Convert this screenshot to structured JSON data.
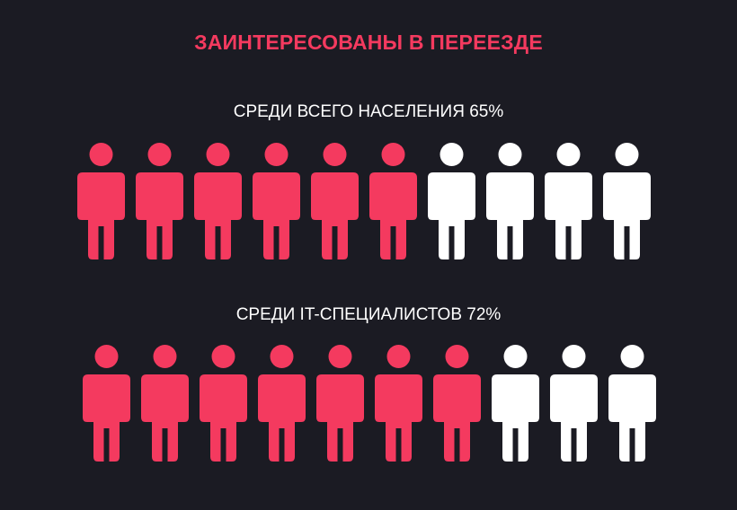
{
  "title": "ЗАИНТЕРЕСОВАНЫ В ПЕРЕЕЗДЕ",
  "colors": {
    "background": "#1b1b23",
    "accent": "#f43a5f",
    "neutral": "#ffffff"
  },
  "icon": "person-icon",
  "chart_data": [
    {
      "type": "pictogram",
      "label": "СРЕДИ ВСЕГО НАСЕЛЕНИЯ 65%",
      "value_percent": 65,
      "total_icons": 10,
      "filled_icons": 6
    },
    {
      "type": "pictogram",
      "label": "СРЕДИ IT-СПЕЦИАЛИСТОВ 72%",
      "value_percent": 72,
      "total_icons": 10,
      "filled_icons": 7
    }
  ]
}
